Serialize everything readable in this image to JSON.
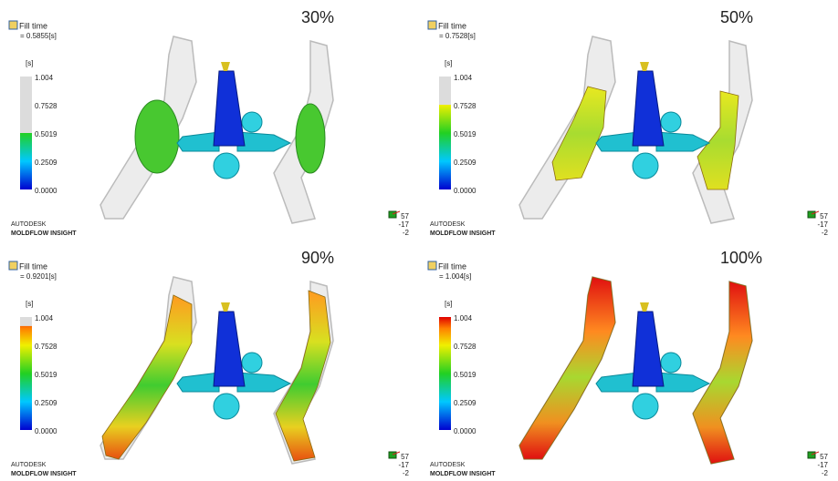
{
  "panels": [
    {
      "icon_label": "Fill time",
      "value": "= 0.5855[s]",
      "percent": "30%",
      "unit": "[s]",
      "scale": [
        "1.004",
        "0.7528",
        "0.5019",
        "0.2509",
        "0.0000"
      ],
      "brand": "AUTODESK",
      "product": "MOLDFLOW INSIGHT",
      "triad": [
        "57",
        "-17",
        "-2"
      ]
    },
    {
      "icon_label": "Fill time",
      "value": "= 0.7528[s]",
      "percent": "50%",
      "unit": "[s]",
      "scale": [
        "1.004",
        "0.7528",
        "0.5019",
        "0.2509",
        "0.0000"
      ],
      "brand": "AUTODESK",
      "product": "MOLDFLOW INSIGHT",
      "triad": [
        "57",
        "-17",
        "-2"
      ]
    },
    {
      "icon_label": "Fill time",
      "value": "= 0.9201[s]",
      "percent": "90%",
      "unit": "[s]",
      "scale": [
        "1.004",
        "0.7528",
        "0.5019",
        "0.2509",
        "0.0000"
      ],
      "brand": "AUTODESK",
      "product": "MOLDFLOW INSIGHT",
      "triad": [
        "57",
        "-17",
        "-2"
      ]
    },
    {
      "icon_label": "Fill time",
      "value": "= 1.004[s]",
      "percent": "100%",
      "unit": "[s]",
      "scale": [
        "1.004",
        "0.7528",
        "0.5019",
        "0.2509",
        "0.0000"
      ],
      "brand": "AUTODESK",
      "product": "MOLDFLOW INSIGHT",
      "triad": [
        "57",
        "-17",
        "-2"
      ]
    }
  ]
}
